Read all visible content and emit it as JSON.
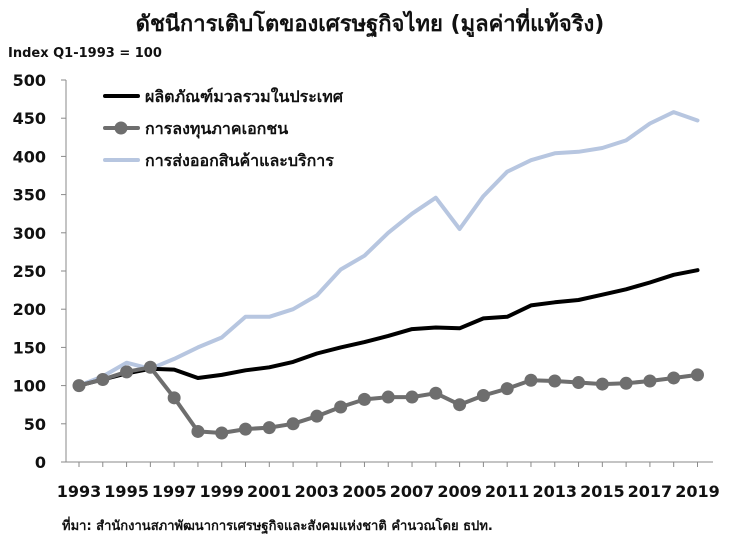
{
  "header": {
    "title": "ดัชนีการเติบโตของเศรษฐกิจไทย (มูลค่าที่แท้จริง)",
    "unit": "Index Q1-1993 = 100"
  },
  "footer": {
    "source": "ที่มา: สำนักงานสภาพัฒนาการเศรษฐกิจและสังคมแห่งชาติ คำนวณโดย ธปท."
  },
  "chart_data": {
    "type": "line",
    "ylim": [
      0,
      500
    ],
    "yticks": [
      0,
      50,
      100,
      150,
      200,
      250,
      300,
      350,
      400,
      450,
      500
    ],
    "xlim": [
      1993,
      2019.4
    ],
    "xticks": [
      1993,
      1995,
      1997,
      1999,
      2001,
      2003,
      2005,
      2007,
      2009,
      2011,
      2013,
      2015,
      2017,
      2019
    ],
    "grid": false,
    "legend_position": "top-left",
    "series": [
      {
        "name": "ผลิตภัณฑ์มวลรวมในประเทศ",
        "color": "#000000",
        "marker": false,
        "x": [
          1993,
          1994,
          1995,
          1996,
          1997,
          1998,
          1999,
          2000,
          2001,
          2002,
          2003,
          2004,
          2005,
          2006,
          2007,
          2008,
          2009,
          2010,
          2011,
          2012,
          2013,
          2014,
          2015,
          2016,
          2017,
          2018,
          2019
        ],
        "values": [
          100,
          108,
          116,
          122,
          121,
          110,
          114,
          120,
          124,
          131,
          142,
          150,
          157,
          165,
          174,
          176,
          175,
          188,
          190,
          205,
          209,
          212,
          219,
          226,
          235,
          245,
          251
        ]
      },
      {
        "name": "การลงทุนภาคเอกชน",
        "color": "#6e6e6e",
        "marker": true,
        "x": [
          1993,
          1994,
          1995,
          1996,
          1997,
          1998,
          1999,
          2000,
          2001,
          2002,
          2003,
          2004,
          2005,
          2006,
          2007,
          2008,
          2009,
          2010,
          2011,
          2012,
          2013,
          2014,
          2015,
          2016,
          2017,
          2018,
          2019
        ],
        "values": [
          100,
          108,
          118,
          124,
          84,
          40,
          38,
          43,
          45,
          50,
          60,
          72,
          82,
          85,
          85,
          90,
          75,
          87,
          96,
          107,
          106,
          104,
          102,
          103,
          106,
          110,
          114
        ]
      },
      {
        "name": "การส่งออกสินค้าและบริการ",
        "color": "#b7c6e0",
        "marker": false,
        "x": [
          1993,
          1994,
          1995,
          1996,
          1997,
          1998,
          1999,
          2000,
          2001,
          2002,
          2003,
          2004,
          2005,
          2006,
          2007,
          2008,
          2009,
          2010,
          2011,
          2012,
          2013,
          2014,
          2015,
          2016,
          2017,
          2018,
          2019
        ],
        "values": [
          100,
          112,
          130,
          122,
          135,
          150,
          163,
          190,
          190,
          200,
          218,
          252,
          270,
          300,
          325,
          346,
          305,
          348,
          380,
          395,
          404,
          406,
          411,
          421,
          443,
          458,
          447
        ]
      }
    ]
  }
}
